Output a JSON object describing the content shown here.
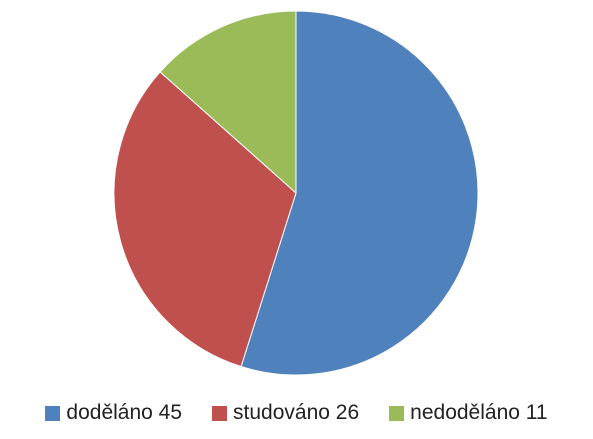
{
  "chart_data": {
    "type": "pie",
    "slices": [
      {
        "label": "doděláno 45",
        "value": 45,
        "color": "#4F81BD"
      },
      {
        "label": "studováno 26",
        "value": 26,
        "color": "#C0504D"
      },
      {
        "label": "nedoděláno 11",
        "value": 11,
        "color": "#9BBB59"
      }
    ],
    "legend_position": "bottom",
    "start": "top",
    "direction": "clockwise"
  }
}
